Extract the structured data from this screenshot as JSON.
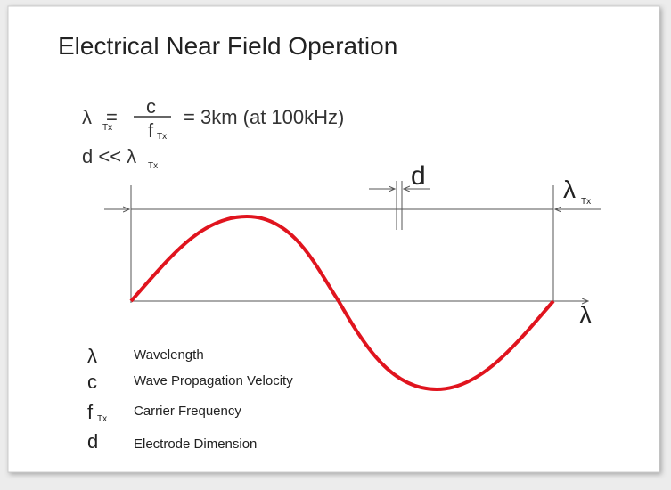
{
  "title": "Electrical Near Field Operation",
  "formula": {
    "lhs_symbol": "λ",
    "lhs_subscript": "Tx",
    "equals": "=",
    "numerator": "c",
    "denominator_symbol": "f",
    "denominator_subscript": "Tx",
    "result": "= 3km (at 100kHz)"
  },
  "condition": {
    "text": "d << λ",
    "subscript": "Tx"
  },
  "diagram": {
    "d_label": "d",
    "wavelength_symbol": "λ",
    "wavelength_subscript": "Tx",
    "axis_label": "λ"
  },
  "legend": [
    {
      "symbol": "λ",
      "description": "Wavelength"
    },
    {
      "symbol": "c",
      "description": "Wave Propagation Velocity"
    },
    {
      "symbol": "f",
      "subscript": "Tx",
      "description": "Carrier Frequency"
    },
    {
      "symbol": "d",
      "description": "Electrode Dimension"
    }
  ]
}
